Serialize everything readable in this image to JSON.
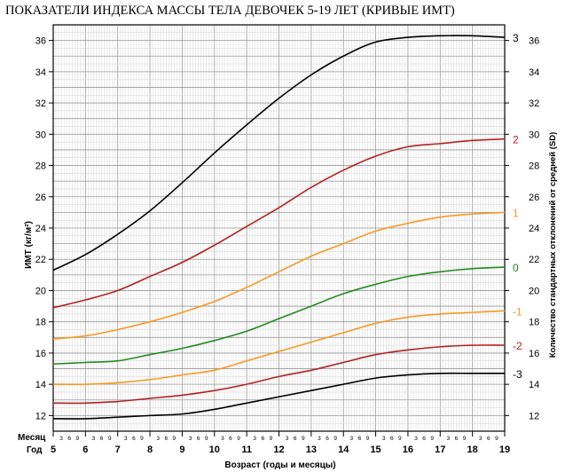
{
  "chart_data": {
    "type": "line",
    "title": "ПОКАЗАТЕЛИ ИНДЕКСА МАССЫ ТЕЛА ДЕВОЧЕК 5-19 ЛЕТ (КРИВЫЕ ИМТ)",
    "ylabel": "ИМТ (кг/м²)",
    "ylabel_right": "Количество стандартных отклонений от средней (SD)",
    "xlabel": "Возраст (годы и месяцы)",
    "row_label_months": "Месяц",
    "row_label_years": "Год",
    "xlim": [
      5,
      19
    ],
    "ylim": [
      11,
      37
    ],
    "x_year_ticks": [
      "5",
      "6",
      "7",
      "8",
      "9",
      "10",
      "11",
      "12",
      "13",
      "14",
      "15",
      "16",
      "17",
      "18",
      "19"
    ],
    "month_marks": [
      "3",
      "6",
      "9"
    ],
    "y_ticks": [
      "12",
      "14",
      "16",
      "18",
      "20",
      "22",
      "24",
      "26",
      "28",
      "30",
      "32",
      "34",
      "36"
    ],
    "grid": true,
    "x": [
      5,
      6,
      7,
      8,
      9,
      10,
      11,
      12,
      13,
      14,
      15,
      16,
      17,
      18,
      19
    ],
    "series": [
      {
        "name": "3",
        "color": "#000000",
        "values": [
          21.3,
          22.3,
          23.6,
          25.1,
          26.9,
          28.8,
          30.6,
          32.3,
          33.8,
          35.0,
          35.9,
          36.2,
          36.3,
          36.3,
          36.2
        ]
      },
      {
        "name": "2",
        "color": "#b22222",
        "values": [
          18.9,
          19.4,
          20.0,
          20.9,
          21.8,
          22.9,
          24.1,
          25.3,
          26.6,
          27.7,
          28.6,
          29.2,
          29.4,
          29.6,
          29.7
        ]
      },
      {
        "name": "1",
        "color": "#f59a23",
        "values": [
          16.9,
          17.1,
          17.5,
          18.0,
          18.6,
          19.3,
          20.2,
          21.2,
          22.2,
          23.0,
          23.8,
          24.3,
          24.7,
          24.9,
          25.0
        ]
      },
      {
        "name": "0",
        "color": "#228b22",
        "values": [
          15.3,
          15.4,
          15.5,
          15.9,
          16.3,
          16.8,
          17.4,
          18.2,
          19.0,
          19.8,
          20.4,
          20.9,
          21.2,
          21.4,
          21.5
        ]
      },
      {
        "name": "-1",
        "color": "#f59a23",
        "values": [
          14.0,
          14.0,
          14.1,
          14.3,
          14.6,
          14.9,
          15.5,
          16.1,
          16.7,
          17.3,
          17.9,
          18.3,
          18.5,
          18.6,
          18.7
        ]
      },
      {
        "name": "-2",
        "color": "#b22222",
        "values": [
          12.8,
          12.8,
          12.9,
          13.1,
          13.3,
          13.6,
          14.0,
          14.5,
          14.9,
          15.4,
          15.9,
          16.2,
          16.4,
          16.5,
          16.5
        ]
      },
      {
        "name": "-3",
        "color": "#000000",
        "values": [
          11.8,
          11.8,
          11.9,
          12.0,
          12.1,
          12.4,
          12.8,
          13.2,
          13.6,
          14.0,
          14.4,
          14.6,
          14.7,
          14.7,
          14.7
        ]
      }
    ]
  }
}
